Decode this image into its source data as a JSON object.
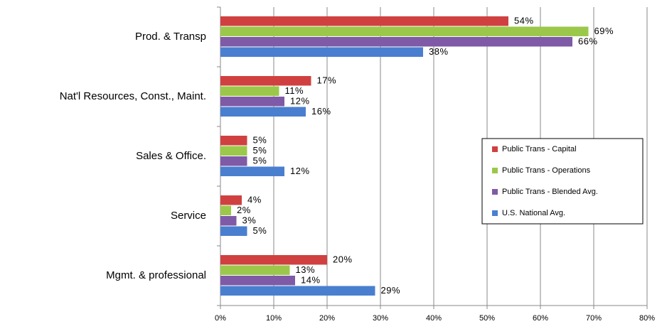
{
  "chart_data": {
    "type": "barh",
    "categories": [
      "Prod. & Transp",
      "Nat'l  Resources, Const., Maint.",
      "Sales & Office.",
      "Service",
      "Mgmt. & professional"
    ],
    "series": [
      {
        "name": "Public Trans - Capital",
        "color": "#d04040",
        "values": [
          54,
          17,
          5,
          4,
          20
        ],
        "value_labels": [
          "54%",
          "17%",
          "5%",
          "4%",
          "20%"
        ]
      },
      {
        "name": "Public Trans - Operations",
        "color": "#9bc84a",
        "values": [
          69,
          11,
          5,
          2,
          13
        ],
        "value_labels": [
          "69%",
          "11%",
          "5%",
          "2%",
          "13%"
        ]
      },
      {
        "name": "Public Trans - Blended Avg.",
        "color": "#7f5aa6",
        "values": [
          66,
          12,
          5,
          3,
          14
        ],
        "value_labels": [
          "66%",
          "12%",
          "5%",
          "3%",
          "14%"
        ]
      },
      {
        "name": "U.S. National Avg.",
        "color": "#4a7fd0",
        "values": [
          38,
          16,
          12,
          5,
          29
        ],
        "value_labels": [
          "38%",
          "16%",
          "12%",
          "5%",
          "29%"
        ]
      }
    ],
    "xlim": [
      0,
      80
    ],
    "xticks": [
      {
        "value": 0,
        "label": "0%"
      },
      {
        "value": 10,
        "label": "10%"
      },
      {
        "value": 20,
        "label": "20%"
      },
      {
        "value": 30,
        "label": "30%"
      },
      {
        "value": 40,
        "label": "40%"
      },
      {
        "value": 50,
        "label": "50%"
      },
      {
        "value": 60,
        "label": "60%"
      },
      {
        "value": 70,
        "label": "70%"
      },
      {
        "value": 80,
        "label": "80%"
      }
    ],
    "grid": true,
    "legend": "right"
  }
}
